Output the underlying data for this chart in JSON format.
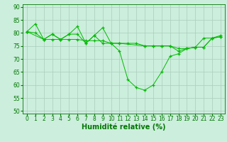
{
  "background_color": "#cceedd",
  "grid_color": "#aaccbb",
  "line_color": "#00bb00",
  "marker_color": "#00bb00",
  "xlabel": "Humidité relative (%)",
  "xlabel_fontsize": 7,
  "tick_fontsize": 5.5,
  "xlim": [
    -0.5,
    23.5
  ],
  "ylim": [
    49,
    91
  ],
  "yticks": [
    50,
    55,
    60,
    65,
    70,
    75,
    80,
    85,
    90
  ],
  "xticks": [
    0,
    1,
    2,
    3,
    4,
    5,
    6,
    7,
    8,
    9,
    10,
    11,
    12,
    13,
    14,
    15,
    16,
    17,
    18,
    19,
    20,
    21,
    22,
    23
  ],
  "series": [
    {
      "x": [
        0,
        1,
        2,
        3,
        4,
        5,
        6,
        7,
        8,
        9,
        10,
        11,
        12,
        13,
        14,
        15,
        16,
        17,
        18,
        19,
        20,
        21,
        22,
        23
      ],
      "y": [
        80.5,
        83.5,
        77.5,
        79.5,
        77.5,
        79.5,
        82.5,
        76,
        79,
        82,
        76,
        73,
        62,
        59,
        58,
        60,
        65,
        71,
        72,
        74,
        74.5,
        78,
        78,
        79
      ]
    },
    {
      "x": [
        0,
        1,
        2,
        3,
        4,
        5,
        6,
        7,
        8,
        9,
        10,
        11,
        12,
        13,
        14,
        15,
        16,
        17,
        18,
        19,
        20,
        21,
        22,
        23
      ],
      "y": [
        80.5,
        80,
        77.5,
        77.5,
        77.5,
        77.5,
        77.5,
        77,
        77,
        77,
        76,
        76,
        76,
        76,
        75,
        75,
        75,
        75,
        74,
        74,
        74.5,
        74.5,
        78,
        78.5
      ]
    },
    {
      "x": [
        0,
        2,
        3,
        4,
        5,
        6,
        7,
        8,
        9,
        10,
        11,
        14,
        15,
        16,
        17,
        18,
        19,
        20,
        21,
        22,
        23
      ],
      "y": [
        80.5,
        77.5,
        79.5,
        77.5,
        79.5,
        79.5,
        76,
        79,
        76,
        76,
        76,
        75,
        75,
        75,
        75,
        73,
        74,
        74.5,
        74.5,
        78,
        78.5
      ]
    }
  ]
}
